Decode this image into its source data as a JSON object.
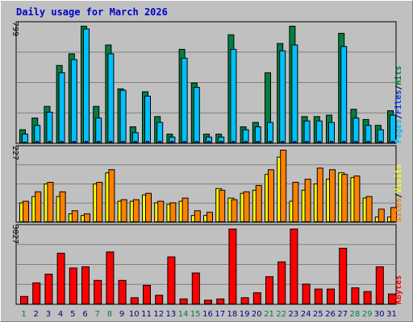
{
  "chart_data": [
    {
      "type": "bar",
      "title": "Daily usage for March 2026",
      "categories": [
        "1",
        "2",
        "3",
        "4",
        "5",
        "6",
        "7",
        "8",
        "9",
        "10",
        "11",
        "12",
        "13",
        "14",
        "15",
        "16",
        "17",
        "18",
        "19",
        "20",
        "21",
        "22",
        "23",
        "24",
        "25",
        "26",
        "27",
        "28",
        "29",
        "30",
        "31"
      ],
      "weekend_days": [
        "1",
        "7",
        "8",
        "14",
        "15",
        "21",
        "22",
        "28",
        "29"
      ],
      "ymax_label": "799",
      "legend": {
        "pages": "Pages",
        "files": "Files",
        "hits": "Hits",
        "sep": "/"
      },
      "series": [
        {
          "name": "Hits",
          "color": "#008040",
          "values": [
            90,
            170,
            250,
            530,
            610,
            799,
            250,
            670,
            370,
            110,
            350,
            180,
            60,
            640,
            410,
            60,
            60,
            740,
            110,
            140,
            480,
            680,
            799,
            180,
            180,
            190,
            750,
            230,
            160,
            120,
            220
          ]
        },
        {
          "name": "Files",
          "color": "#00c0ff",
          "values": [
            60,
            120,
            210,
            480,
            570,
            780,
            170,
            610,
            360,
            70,
            320,
            140,
            40,
            580,
            380,
            40,
            40,
            640,
            90,
            110,
            140,
            630,
            670,
            150,
            150,
            140,
            660,
            170,
            120,
            90,
            190
          ]
        },
        {
          "name": "Pages",
          "color": "#0040ff",
          "values": [
            5,
            10,
            10,
            10,
            10,
            10,
            10,
            10,
            10,
            10,
            10,
            10,
            10,
            10,
            10,
            10,
            10,
            10,
            10,
            10,
            10,
            10,
            10,
            10,
            10,
            10,
            10,
            10,
            10,
            10,
            10
          ]
        }
      ]
    },
    {
      "type": "bar",
      "ymax_label": "227",
      "legend": {
        "sites": "Sites",
        "visits": "Visits",
        "sep": "/"
      },
      "series": [
        {
          "name": "Visits",
          "color": "#ffff00",
          "values": [
            60,
            80,
            120,
            80,
            25,
            20,
            120,
            155,
            65,
            65,
            85,
            60,
            55,
            65,
            20,
            20,
            105,
            75,
            90,
            100,
            150,
            205,
            65,
            100,
            120,
            135,
            155,
            140,
            75,
            15,
            15
          ]
        },
        {
          "name": "Sites",
          "color": "#ff8000",
          "values": [
            65,
            95,
            125,
            95,
            35,
            25,
            125,
            165,
            70,
            70,
            90,
            65,
            60,
            75,
            35,
            30,
            100,
            70,
            95,
            115,
            165,
            227,
            125,
            135,
            170,
            165,
            150,
            145,
            80,
            40,
            45
          ]
        }
      ]
    },
    {
      "type": "bar",
      "ymax_label": "3027",
      "legend": {
        "kbytes": "KBytes"
      },
      "series": [
        {
          "name": "KBytes",
          "color": "#ff0000",
          "values": [
            300,
            850,
            1200,
            2050,
            1450,
            1500,
            950,
            2100,
            950,
            250,
            750,
            350,
            1900,
            200,
            1250,
            150,
            200,
            3027,
            250,
            450,
            1100,
            1700,
            3027,
            800,
            600,
            600,
            2250,
            650,
            500,
            1500,
            400
          ]
        }
      ]
    }
  ]
}
